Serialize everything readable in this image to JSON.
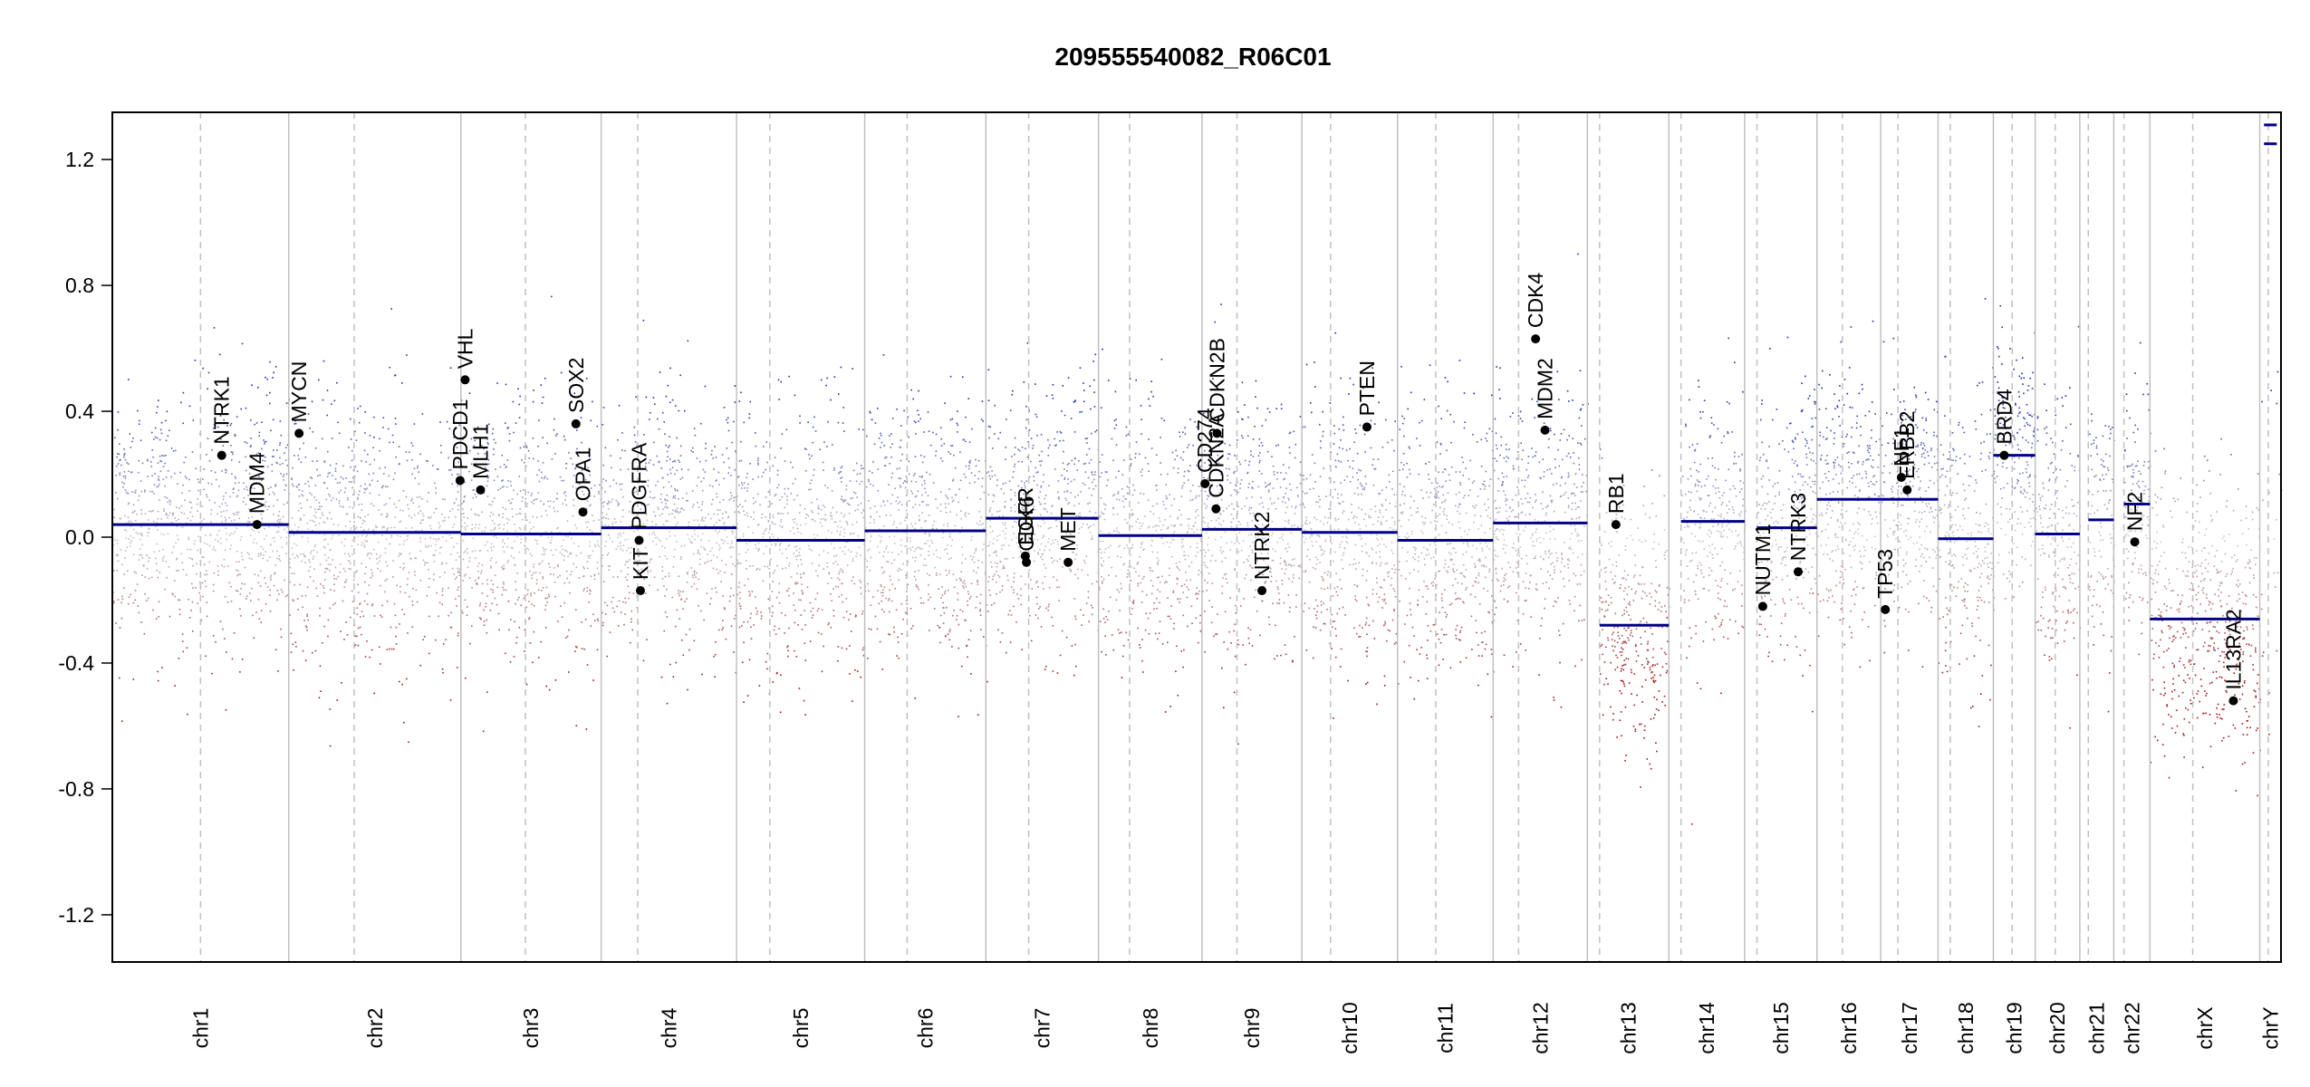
{
  "chart_data": {
    "type": "scatter",
    "title": "209555540082_R06C01",
    "xlabel": "",
    "ylabel": "",
    "ylim": [
      -1.35,
      1.35
    ],
    "yticks": [
      -1.2,
      -0.8,
      -0.4,
      0.0,
      0.4,
      0.8,
      1.2
    ],
    "ytick_labels": [
      "-1.2",
      "-0.8",
      "-0.4",
      "0.0",
      "0.4",
      "0.8",
      "1.2"
    ],
    "grid": true,
    "legend": "none",
    "colors": {
      "gain": "#1f2fa8",
      "neutral": "#c8c8c8",
      "loss": "#a0181a",
      "segment": "#00008b",
      "gene_point": "#000000",
      "boundary": "#c0c0c0"
    },
    "chromosomes": [
      {
        "label": "chr1",
        "length": 249,
        "centromere": 0.5,
        "segments": [
          {
            "start": 0.0,
            "end": 1.0,
            "value": 0.04
          }
        ]
      },
      {
        "label": "chr2",
        "length": 243,
        "centromere": 0.38,
        "segments": [
          {
            "start": 0.0,
            "end": 1.0,
            "value": 0.015
          }
        ]
      },
      {
        "label": "chr3",
        "length": 198,
        "centromere": 0.46,
        "segments": [
          {
            "start": 0.0,
            "end": 1.0,
            "value": 0.01
          }
        ]
      },
      {
        "label": "chr4",
        "length": 191,
        "centromere": 0.27,
        "segments": [
          {
            "start": 0.0,
            "end": 1.0,
            "value": 0.03
          }
        ]
      },
      {
        "label": "chr5",
        "length": 181,
        "centromere": 0.26,
        "segments": [
          {
            "start": 0.0,
            "end": 1.0,
            "value": -0.01
          }
        ]
      },
      {
        "label": "chr6",
        "length": 171,
        "centromere": 0.35,
        "segments": [
          {
            "start": 0.0,
            "end": 1.0,
            "value": 0.02
          }
        ]
      },
      {
        "label": "chr7",
        "length": 159,
        "centromere": 0.38,
        "segments": [
          {
            "start": 0.0,
            "end": 1.0,
            "value": 0.06
          }
        ]
      },
      {
        "label": "chr8",
        "length": 146,
        "centromere": 0.3,
        "segments": [
          {
            "start": 0.0,
            "end": 1.0,
            "value": 0.005
          }
        ]
      },
      {
        "label": "chr9",
        "length": 141,
        "centromere": 0.35,
        "segments": [
          {
            "start": 0.0,
            "end": 1.0,
            "value": 0.025
          }
        ]
      },
      {
        "label": "chr10",
        "length": 135,
        "centromere": 0.3,
        "segments": [
          {
            "start": 0.0,
            "end": 1.0,
            "value": 0.015
          }
        ]
      },
      {
        "label": "chr11",
        "length": 135,
        "centromere": 0.4,
        "segments": [
          {
            "start": 0.0,
            "end": 1.0,
            "value": -0.01
          }
        ]
      },
      {
        "label": "chr12",
        "length": 133,
        "centromere": 0.27,
        "segments": [
          {
            "start": 0.0,
            "end": 1.0,
            "value": 0.045
          }
        ]
      },
      {
        "label": "chr13",
        "length": 115,
        "centromere": 0.15,
        "segments": [
          {
            "start": 0.15,
            "end": 1.0,
            "value": -0.28
          }
        ]
      },
      {
        "label": "chr14",
        "length": 107,
        "centromere": 0.16,
        "segments": [
          {
            "start": 0.16,
            "end": 1.0,
            "value": 0.05
          }
        ]
      },
      {
        "label": "chr15",
        "length": 102,
        "centromere": 0.17,
        "segments": [
          {
            "start": 0.17,
            "end": 1.0,
            "value": 0.03
          }
        ]
      },
      {
        "label": "chr16",
        "length": 90,
        "centromere": 0.4,
        "segments": [
          {
            "start": 0.0,
            "end": 1.0,
            "value": 0.12
          }
        ]
      },
      {
        "label": "chr17",
        "length": 81,
        "centromere": 0.3,
        "segments": [
          {
            "start": 0.0,
            "end": 1.0,
            "value": 0.12
          }
        ]
      },
      {
        "label": "chr18",
        "length": 78,
        "centromere": 0.22,
        "segments": [
          {
            "start": 0.0,
            "end": 1.0,
            "value": -0.005
          }
        ]
      },
      {
        "label": "chr19",
        "length": 59,
        "centromere": 0.45,
        "segments": [
          {
            "start": 0.0,
            "end": 1.0,
            "value": 0.26
          }
        ]
      },
      {
        "label": "chr20",
        "length": 63,
        "centromere": 0.45,
        "segments": [
          {
            "start": 0.0,
            "end": 1.0,
            "value": 0.01
          }
        ]
      },
      {
        "label": "chr21",
        "length": 48,
        "centromere": 0.25,
        "segments": [
          {
            "start": 0.25,
            "end": 1.0,
            "value": 0.055
          }
        ]
      },
      {
        "label": "chr22",
        "length": 51,
        "centromere": 0.28,
        "segments": [
          {
            "start": 0.28,
            "end": 1.0,
            "value": 0.105
          }
        ]
      },
      {
        "label": "chrX",
        "length": 155,
        "centromere": 0.39,
        "segments": [
          {
            "start": 0.0,
            "end": 1.0,
            "value": -0.26
          }
        ]
      },
      {
        "label": "chrY",
        "length": 30,
        "centromere": 0.4,
        "segments": [
          {
            "start": 0.0,
            "end": 1.0,
            "value": 1.31
          },
          {
            "start": 0.0,
            "end": 1.0,
            "value": 1.25
          }
        ]
      }
    ],
    "genes": [
      {
        "name": "NTRK1",
        "chrom": "chr1",
        "pos": 0.62,
        "value": 0.26
      },
      {
        "name": "MDM4",
        "chrom": "chr1",
        "pos": 0.82,
        "value": 0.04
      },
      {
        "name": "MYCN",
        "chrom": "chr2",
        "pos": 0.06,
        "value": 0.33
      },
      {
        "name": "PDCD1",
        "chrom": "chr2",
        "pos": 0.995,
        "value": 0.18
      },
      {
        "name": "VHL",
        "chrom": "chr3",
        "pos": 0.03,
        "value": 0.5
      },
      {
        "name": "MLH1",
        "chrom": "chr3",
        "pos": 0.14,
        "value": 0.15
      },
      {
        "name": "SOX2",
        "chrom": "chr3",
        "pos": 0.82,
        "value": 0.36
      },
      {
        "name": "OPA1",
        "chrom": "chr3",
        "pos": 0.87,
        "value": 0.08
      },
      {
        "name": "PDGFRA",
        "chrom": "chr4",
        "pos": 0.28,
        "value": -0.01
      },
      {
        "name": "KIT",
        "chrom": "chr4",
        "pos": 0.29,
        "value": -0.17
      },
      {
        "name": "EGFR",
        "chrom": "chr7",
        "pos": 0.35,
        "value": -0.06
      },
      {
        "name": "CDK6",
        "chrom": "chr7",
        "pos": 0.36,
        "value": -0.08
      },
      {
        "name": "MET",
        "chrom": "chr7",
        "pos": 0.73,
        "value": -0.08
      },
      {
        "name": "CD274",
        "chrom": "chr9",
        "pos": 0.03,
        "value": 0.17
      },
      {
        "name": "CDKN2A",
        "chrom": "chr9",
        "pos": 0.14,
        "value": 0.09
      },
      {
        "name": "CDKN2B",
        "chrom": "chr9",
        "pos": 0.15,
        "value": 0.33
      },
      {
        "name": "NTRK2",
        "chrom": "chr9",
        "pos": 0.6,
        "value": -0.17
      },
      {
        "name": "PTEN",
        "chrom": "chr10",
        "pos": 0.68,
        "value": 0.35
      },
      {
        "name": "CDK4",
        "chrom": "chr12",
        "pos": 0.45,
        "value": 0.63
      },
      {
        "name": "MDM2",
        "chrom": "chr12",
        "pos": 0.55,
        "value": 0.34
      },
      {
        "name": "RB1",
        "chrom": "chr13",
        "pos": 0.35,
        "value": 0.04
      },
      {
        "name": "NUTM1",
        "chrom": "chr15",
        "pos": 0.25,
        "value": -0.22
      },
      {
        "name": "NTRK3",
        "chrom": "chr15",
        "pos": 0.74,
        "value": -0.11
      },
      {
        "name": "TP53",
        "chrom": "chr17",
        "pos": 0.08,
        "value": -0.23
      },
      {
        "name": "NF1",
        "chrom": "chr17",
        "pos": 0.36,
        "value": 0.19
      },
      {
        "name": "ERBB2",
        "chrom": "chr17",
        "pos": 0.46,
        "value": 0.15
      },
      {
        "name": "BRD4",
        "chrom": "chr19",
        "pos": 0.26,
        "value": 0.26
      },
      {
        "name": "NF2",
        "chrom": "chr22",
        "pos": 0.58,
        "value": -0.015
      },
      {
        "name": "IL13RA2",
        "chrom": "chrX",
        "pos": 0.76,
        "value": -0.52
      }
    ]
  }
}
